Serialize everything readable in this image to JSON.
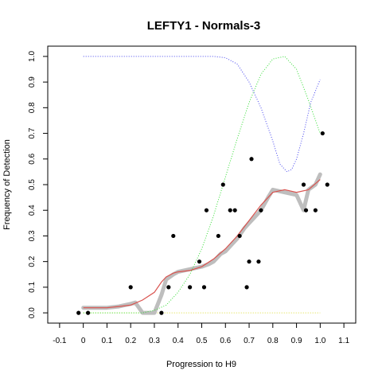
{
  "chart_data": {
    "type": "scatter",
    "title": "LEFTY1 - Normals-3",
    "xlabel": "Progression to H9",
    "ylabel": "Frequency of Detection",
    "xlim": [
      -0.15,
      1.15
    ],
    "ylim": [
      -0.04,
      1.04
    ],
    "xticks": [
      -0.1,
      0.0,
      0.1,
      0.2,
      0.3,
      0.4,
      0.5,
      0.6,
      0.7,
      0.8,
      0.9,
      1.0,
      1.1
    ],
    "xtick_labels": [
      "-0.1",
      "0",
      "0.1",
      "0.2",
      "0.3",
      "0.4",
      "0.5",
      "0.6",
      "0.7",
      "0.8",
      "0.9",
      "1.0",
      "1.1"
    ],
    "yticks": [
      0.0,
      0.1,
      0.2,
      0.3,
      0.4,
      0.5,
      0.6,
      0.7,
      0.8,
      0.9,
      1.0
    ],
    "ytick_labels": [
      "0.0",
      "0.1",
      "0.2",
      "0.3",
      "0.4",
      "0.5",
      "0.6",
      "0.7",
      "0.8",
      "0.9",
      "1.0"
    ],
    "grid": false,
    "colors": {
      "points": "#000000",
      "smoothed": "#bebebe",
      "fit": "#d9534f",
      "green": "#33dd33",
      "blue": "#4444ee",
      "yellow": "#dddd33"
    },
    "series": [
      {
        "style": "points",
        "x": [
          -0.02,
          0.02,
          0.2,
          0.33,
          0.36,
          0.38,
          0.45,
          0.49,
          0.51,
          0.52,
          0.57,
          0.59,
          0.62,
          0.64,
          0.66,
          0.69,
          0.7,
          0.71,
          0.74,
          0.75,
          0.93,
          0.94,
          0.98,
          1.01,
          1.03
        ],
        "y": [
          0.0,
          0.0,
          0.1,
          0.0,
          0.1,
          0.3,
          0.1,
          0.2,
          0.1,
          0.4,
          0.3,
          0.5,
          0.4,
          0.4,
          0.3,
          0.1,
          0.2,
          0.6,
          0.2,
          0.4,
          0.5,
          0.4,
          0.4,
          0.7,
          0.5
        ]
      },
      {
        "style": "smoothed-band",
        "x": [
          0.0,
          0.05,
          0.1,
          0.15,
          0.2,
          0.22,
          0.25,
          0.3,
          0.33,
          0.35,
          0.38,
          0.4,
          0.45,
          0.5,
          0.53,
          0.55,
          0.58,
          0.6,
          0.63,
          0.65,
          0.68,
          0.7,
          0.72,
          0.75,
          0.78,
          0.8,
          0.85,
          0.9,
          0.93,
          0.95,
          0.98,
          1.0
        ],
        "y": [
          0.02,
          0.02,
          0.02,
          0.025,
          0.035,
          0.04,
          0.0,
          0.0,
          0.07,
          0.13,
          0.15,
          0.16,
          0.17,
          0.18,
          0.19,
          0.2,
          0.23,
          0.24,
          0.27,
          0.29,
          0.33,
          0.35,
          0.37,
          0.4,
          0.45,
          0.48,
          0.47,
          0.46,
          0.4,
          0.48,
          0.5,
          0.54
        ]
      },
      {
        "style": "fit-line",
        "x": [
          0.0,
          0.05,
          0.1,
          0.15,
          0.2,
          0.25,
          0.3,
          0.33,
          0.35,
          0.38,
          0.4,
          0.45,
          0.5,
          0.55,
          0.6,
          0.65,
          0.7,
          0.75,
          0.8,
          0.85,
          0.9,
          0.95,
          1.0
        ],
        "y": [
          0.02,
          0.02,
          0.02,
          0.025,
          0.03,
          0.05,
          0.08,
          0.12,
          0.14,
          0.155,
          0.16,
          0.165,
          0.18,
          0.21,
          0.25,
          0.3,
          0.36,
          0.42,
          0.47,
          0.48,
          0.47,
          0.48,
          0.52
        ]
      },
      {
        "style": "dotted-green",
        "x": [
          0.0,
          0.1,
          0.2,
          0.25,
          0.3,
          0.35,
          0.4,
          0.45,
          0.5,
          0.55,
          0.6,
          0.65,
          0.7,
          0.75,
          0.8,
          0.85,
          0.9,
          0.95,
          1.0
        ],
        "y": [
          0.0,
          0.0,
          0.0,
          0.0,
          0.01,
          0.03,
          0.08,
          0.15,
          0.25,
          0.38,
          0.53,
          0.68,
          0.82,
          0.93,
          0.99,
          1.0,
          0.95,
          0.83,
          0.7
        ]
      },
      {
        "style": "dotted-blue",
        "x": [
          0.0,
          0.1,
          0.2,
          0.3,
          0.4,
          0.5,
          0.55,
          0.6,
          0.65,
          0.7,
          0.75,
          0.8,
          0.83,
          0.86,
          0.88,
          0.9,
          0.93,
          0.96,
          1.0
        ],
        "y": [
          1.0,
          1.0,
          1.0,
          1.0,
          1.0,
          1.0,
          1.0,
          0.995,
          0.97,
          0.9,
          0.8,
          0.67,
          0.58,
          0.55,
          0.56,
          0.6,
          0.7,
          0.82,
          0.91
        ]
      },
      {
        "style": "dotted-yellow",
        "x": [
          0.0,
          0.5,
          1.0
        ],
        "y": [
          0.0,
          0.0,
          0.0
        ]
      }
    ]
  }
}
